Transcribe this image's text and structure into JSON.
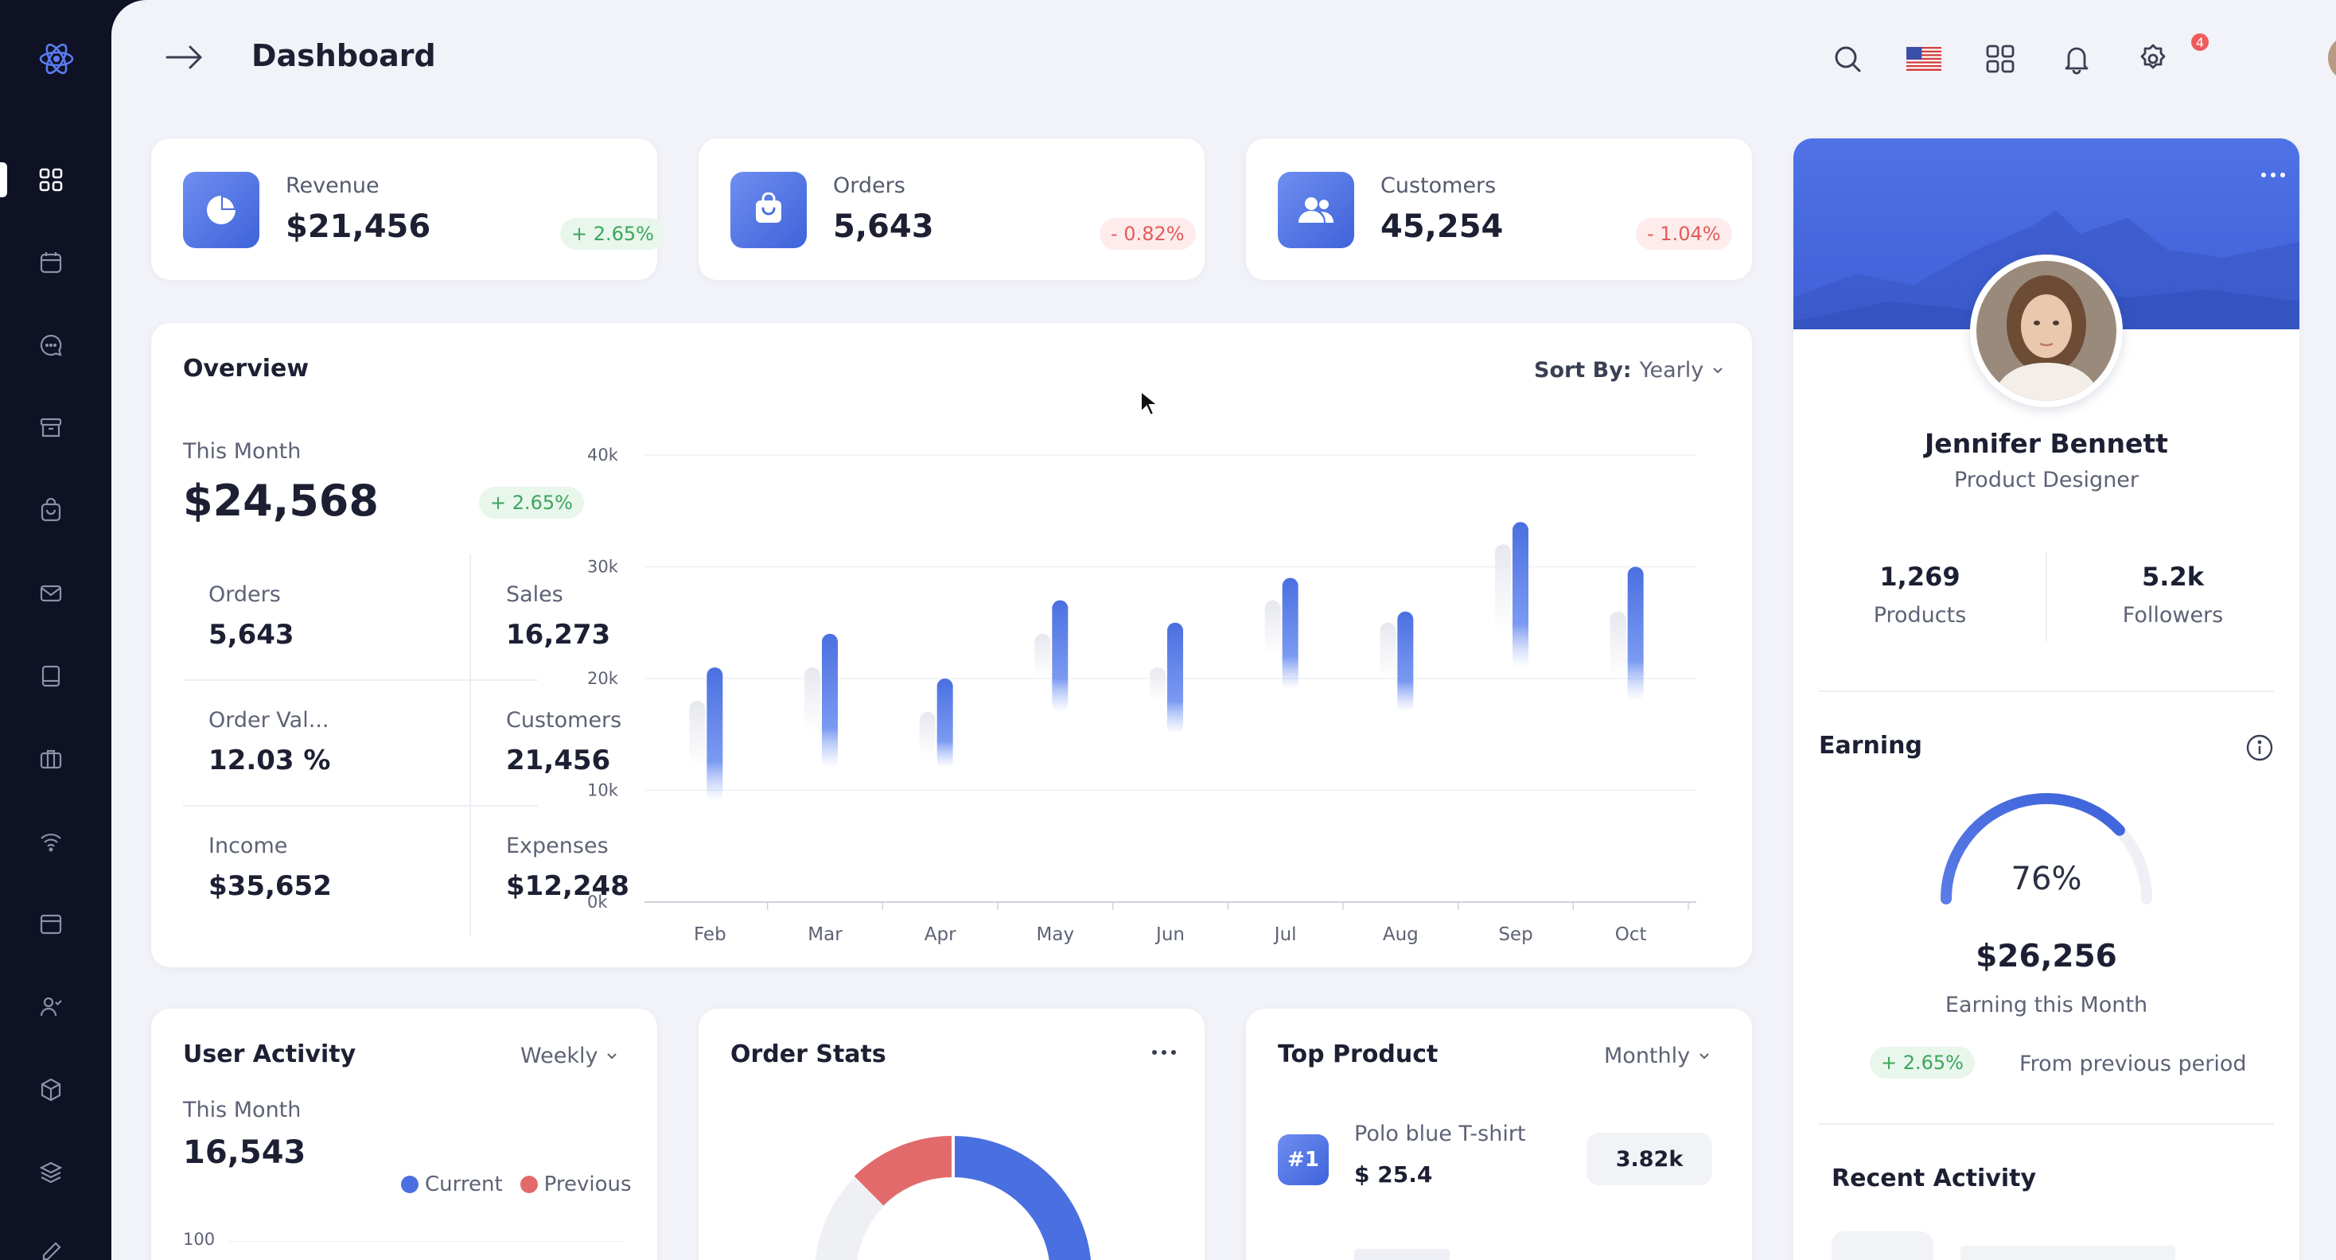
{
  "header": {
    "title": "Dashboard",
    "notification_count": "4"
  },
  "stats": [
    {
      "label": "Revenue",
      "value": "$21,456",
      "change": "+ 2.65%",
      "trend": "up"
    },
    {
      "label": "Orders",
      "value": "5,643",
      "change": "- 0.82%",
      "trend": "down"
    },
    {
      "label": "Customers",
      "value": "45,254",
      "change": "- 1.04%",
      "trend": "down"
    }
  ],
  "overview": {
    "title": "Overview",
    "sort_label": "Sort By:",
    "sort_value": "Yearly",
    "this_month_label": "This Month",
    "this_month_value": "$24,568",
    "this_month_change": "+ 2.65%",
    "metrics": [
      {
        "label": "Orders",
        "value": "5,643"
      },
      {
        "label": "Sales",
        "value": "16,273"
      },
      {
        "label": "Order Val...",
        "value": "12.03 %"
      },
      {
        "label": "Customers",
        "value": "21,456"
      },
      {
        "label": "Income",
        "value": "$35,652"
      },
      {
        "label": "Expenses",
        "value": "$12,248"
      }
    ]
  },
  "chart_data": {
    "type": "bar",
    "categories": [
      "Feb",
      "Mar",
      "Apr",
      "May",
      "Jun",
      "Jul",
      "Aug",
      "Sep",
      "Oct"
    ],
    "series": [
      {
        "values": [
          [
            9,
            21
          ],
          [
            12,
            24
          ],
          [
            12,
            20
          ],
          [
            17,
            27
          ],
          [
            15,
            25
          ],
          [
            19,
            29
          ],
          [
            17,
            26
          ],
          [
            21,
            34
          ],
          [
            18,
            30
          ]
        ]
      },
      {
        "values": [
          [
            12,
            18
          ],
          [
            15,
            21
          ],
          [
            13,
            17
          ],
          [
            20,
            24
          ],
          [
            18,
            21
          ],
          [
            22,
            27
          ],
          [
            20,
            25
          ],
          [
            24,
            32
          ],
          [
            20,
            26
          ]
        ]
      }
    ],
    "yticks": [
      "0k",
      "10k",
      "20k",
      "30k",
      "40k"
    ],
    "ylim": [
      0,
      40
    ],
    "grid": true,
    "legend": "none",
    "colors": {
      "primary": "#4a6fe0",
      "secondary": "#e6e8ef"
    }
  },
  "user_activity": {
    "title": "User Activity",
    "period": "Weekly",
    "this_month_label": "This Month",
    "value": "16,543",
    "legend_current": "Current",
    "legend_previous": "Previous",
    "y_tick": "100"
  },
  "order_stats": {
    "title": "Order Stats",
    "menu": "..."
  },
  "top_product": {
    "title": "Top Product",
    "period": "Monthly",
    "items": [
      {
        "rank": "#1",
        "name": "Polo blue T-shirt",
        "price": "$ 25.4",
        "sales": "3.82k"
      }
    ]
  },
  "profile": {
    "name": "Jennifer Bennett",
    "role": "Product Designer",
    "products_value": "1,269",
    "products_label": "Products",
    "followers_value": "5.2k",
    "followers_label": "Followers"
  },
  "earning": {
    "title": "Earning",
    "percent": "76%",
    "gauge_fraction": 0.76,
    "amount": "$26,256",
    "amount_label": "Earning this Month",
    "change": "+ 2.65%",
    "change_label": "From previous period"
  },
  "recent_activity": {
    "title": "Recent Activity"
  },
  "colors": {
    "sidebar_bg": "#0f1125",
    "canvas_bg": "#f2f3f8",
    "accent": "#4a6fe0",
    "positive": "#3aa65a",
    "negative": "#e35b5b"
  }
}
